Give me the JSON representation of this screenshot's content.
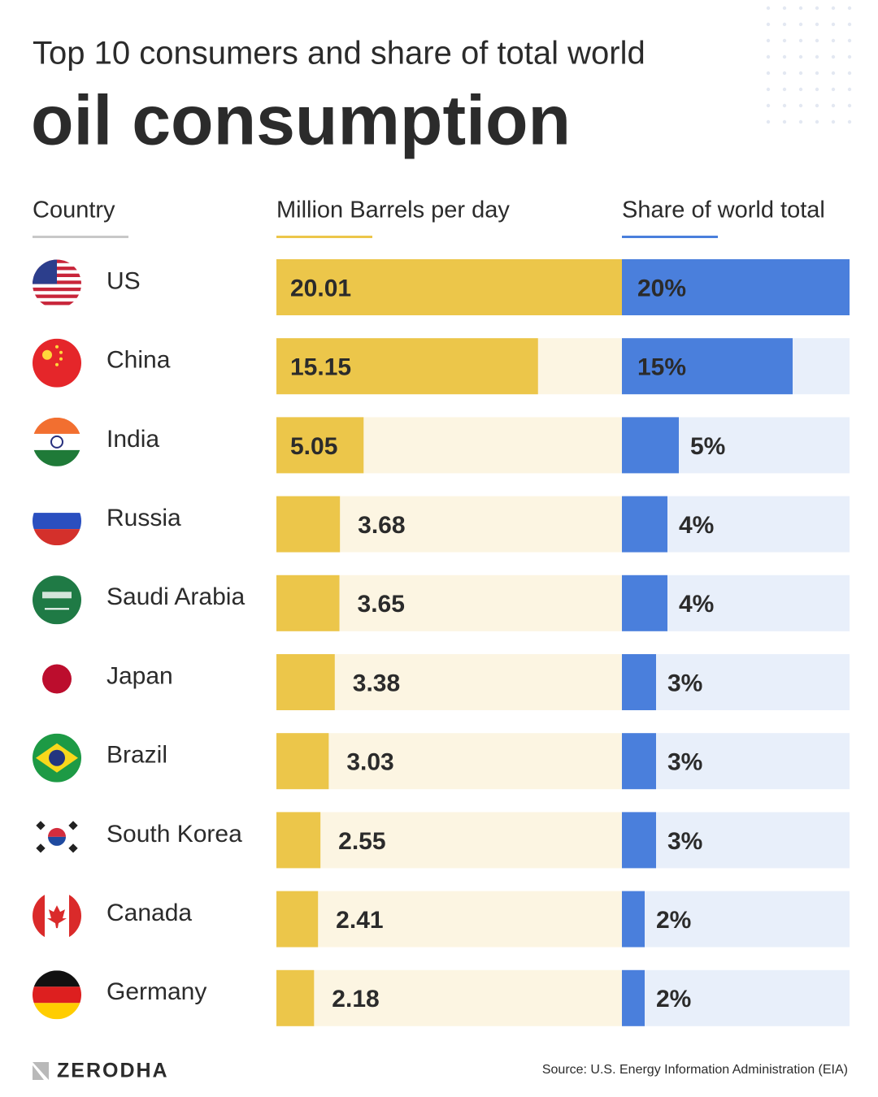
{
  "chart_data": {
    "type": "bar",
    "title": "Top 10 consumers and share of total world",
    "subtitle": "oil consumption",
    "category_header": "Country",
    "categories": [
      "US",
      "China",
      "India",
      "Russia",
      "Saudi Arabia",
      "Japan",
      "Brazil",
      "South Korea",
      "Canada",
      "Germany"
    ],
    "series": [
      {
        "name": "Million Barrels per day",
        "color": "#ecc64a",
        "track_color": "#fcf5e2",
        "values": [
          20.01,
          15.15,
          5.05,
          3.68,
          3.65,
          3.38,
          3.03,
          2.55,
          2.41,
          2.18
        ]
      },
      {
        "name": "Share of world total",
        "color": "#4a7fdc",
        "track_color": "#e8effa",
        "values": [
          20,
          15,
          5,
          4,
          4,
          3,
          3,
          3,
          2,
          2
        ],
        "value_labels": [
          "20%",
          "15%",
          "5%",
          "4%",
          "4%",
          "3%",
          "3%",
          "3%",
          "2%",
          "2%"
        ]
      }
    ],
    "source": "Source: U.S. Energy Information Administration (EIA)",
    "brand": "ZERODHA"
  }
}
